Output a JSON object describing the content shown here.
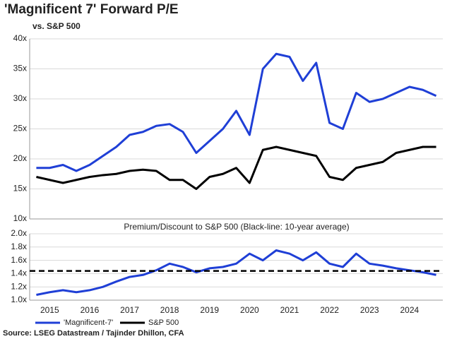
{
  "chart_data": [
    {
      "type": "line",
      "title": "'Magnificent 7' Forward P/E",
      "subtitle": "vs. S&P 500",
      "series": [
        {
          "name": "'Magnificent-7'",
          "color": "#1f3fd6",
          "values": [
            18.5,
            18.5,
            19,
            18,
            19,
            20.5,
            22,
            24,
            24.5,
            25.5,
            25.8,
            24.5,
            21,
            23,
            25,
            28,
            24,
            35,
            37.5,
            37,
            33,
            36,
            26,
            25,
            31,
            29.5,
            30,
            31,
            32,
            31.5,
            30.5
          ]
        },
        {
          "name": "S&P 500",
          "color": "#000000",
          "values": [
            17,
            16.5,
            16,
            16.5,
            17,
            17.3,
            17.5,
            18,
            18.2,
            18,
            16.5,
            16.5,
            15,
            17,
            17.5,
            18.5,
            16,
            21.5,
            22,
            21.5,
            21,
            20.5,
            17,
            16.5,
            18.5,
            19,
            19.5,
            21,
            21.5,
            22,
            22
          ]
        }
      ],
      "ylim": [
        10,
        40
      ],
      "yticks": [
        {
          "value": 10,
          "label": "10x"
        },
        {
          "value": 15,
          "label": "15x"
        },
        {
          "value": 20,
          "label": "20x"
        },
        {
          "value": 25,
          "label": "25x"
        },
        {
          "value": 30,
          "label": "30x"
        },
        {
          "value": 35,
          "label": "35x"
        },
        {
          "value": 40,
          "label": "40x"
        }
      ],
      "grid": true,
      "legend": "bottom"
    },
    {
      "type": "line",
      "title": "Premium/Discount to S&P 500 (Black-line: 10-year average)",
      "categories": [
        null,
        "2015",
        null,
        null,
        "2016",
        null,
        null,
        "2017",
        null,
        null,
        "2018",
        null,
        null,
        "2019",
        null,
        null,
        "2020",
        null,
        null,
        "2021",
        null,
        null,
        "2022",
        null,
        null,
        "2023",
        null,
        null,
        "2024",
        null,
        null
      ],
      "values": [
        1.08,
        1.12,
        1.15,
        1.12,
        1.15,
        1.2,
        1.28,
        1.35,
        1.38,
        1.45,
        1.55,
        1.5,
        1.42,
        1.48,
        1.5,
        1.55,
        1.7,
        1.6,
        1.75,
        1.7,
        1.6,
        1.72,
        1.55,
        1.5,
        1.7,
        1.55,
        1.52,
        1.48,
        1.45,
        1.42,
        1.38
      ],
      "color": "#1f3fd6",
      "reference_line": {
        "value": 1.44,
        "color": "#000000"
      },
      "ylim": [
        1,
        2
      ],
      "yticks": [
        {
          "value": 1,
          "label": "1.0x"
        },
        {
          "value": 1.2,
          "label": "1.2x"
        },
        {
          "value": 1.4,
          "label": "1.4x"
        },
        {
          "value": 1.6,
          "label": "1.6x"
        },
        {
          "value": 1.8,
          "label": "1.8x"
        },
        {
          "value": 2,
          "label": "2.0x"
        }
      ],
      "grid": true
    }
  ],
  "source": "Source: LSEG Datastream / Tajinder Dhillon, CFA"
}
